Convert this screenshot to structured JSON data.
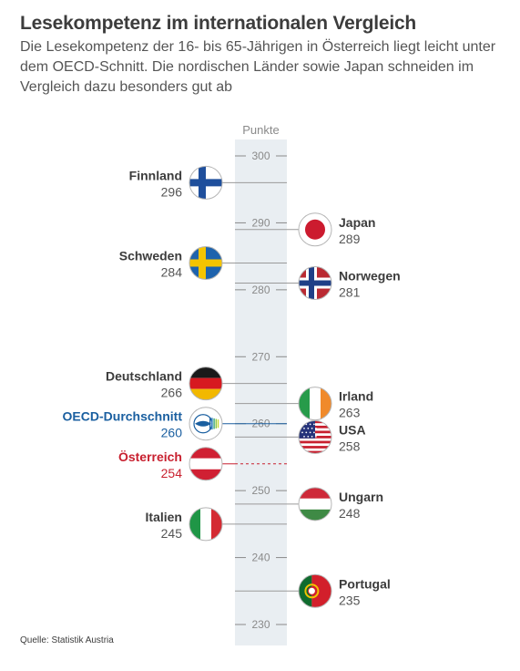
{
  "header": {
    "title": "Lesekompetenz im internationalen Vergleich",
    "subtitle": "Die Lesekompetenz der 16- bis 65-Jährigen in Österreich liegt leicht unter dem OECD-Schnitt. Die nordischen Länder sowie Japan schneiden im Vergleich dazu besonders gut ab"
  },
  "footer": {
    "source": "Quelle: Statistik Austria"
  },
  "chart_data": {
    "type": "scatter",
    "title": "Lesekompetenz im internationalen Vergleich",
    "axis_label": "Punkte",
    "ylim": [
      227,
      303
    ],
    "ticks": [
      300,
      290,
      280,
      270,
      260,
      250,
      240,
      230
    ],
    "colors": {
      "axis_band": "#e9eef2",
      "text": "#3c3c3c",
      "value": "#555555",
      "oecd": "#1a5fa0",
      "austria": "#c8202f",
      "line": "#9a9a9a"
    },
    "points": [
      {
        "label": "Finnland",
        "value": 296,
        "side": "left",
        "flag": "finland"
      },
      {
        "label": "Japan",
        "value": 289,
        "side": "right",
        "flag": "japan"
      },
      {
        "label": "Schweden",
        "value": 284,
        "side": "left",
        "flag": "sweden"
      },
      {
        "label": "Norwegen",
        "value": 281,
        "side": "right",
        "flag": "norway"
      },
      {
        "label": "Deutschland",
        "value": 266,
        "side": "left",
        "flag": "germany"
      },
      {
        "label": "Irland",
        "value": 263,
        "side": "right",
        "flag": "ireland"
      },
      {
        "label": "OECD-Durchschnitt",
        "value": 260,
        "side": "left",
        "flag": "oecd",
        "highlight": "oecd"
      },
      {
        "label": "USA",
        "value": 258,
        "side": "right",
        "flag": "usa"
      },
      {
        "label": "Österreich",
        "value": 254,
        "side": "left",
        "flag": "austria",
        "highlight": "austria"
      },
      {
        "label": "Ungarn",
        "value": 248,
        "side": "right",
        "flag": "hungary"
      },
      {
        "label": "Italien",
        "value": 245,
        "side": "left",
        "flag": "italy"
      },
      {
        "label": "Portugal",
        "value": 235,
        "side": "right",
        "flag": "portugal"
      }
    ]
  }
}
